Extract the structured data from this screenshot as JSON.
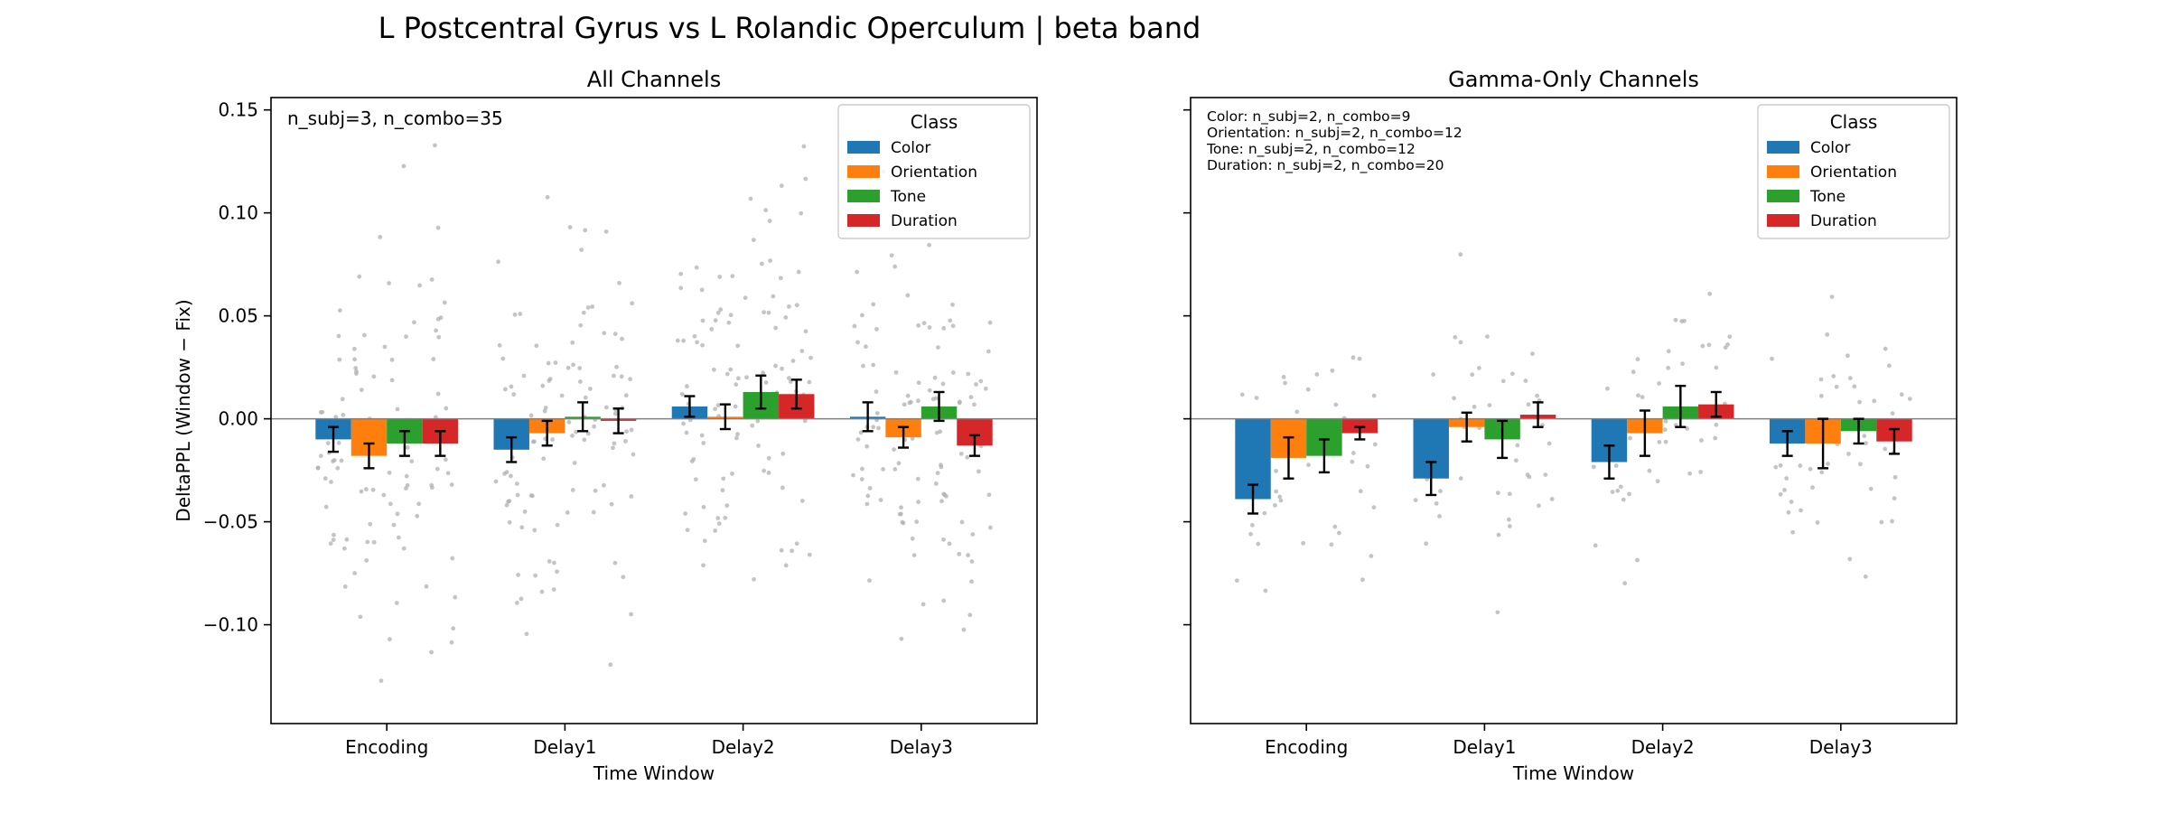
{
  "figure": {
    "title": "L Postcentral Gyrus vs L Rolandic Operculum  |  beta band"
  },
  "colors": {
    "Color": "#1f77b4",
    "Orientation": "#ff7f0e",
    "Tone": "#2ca02c",
    "Duration": "#d62728",
    "scatter": "#b0b0b0",
    "zero_line": "#808080"
  },
  "chart_data": [
    {
      "type": "bar",
      "title": "All Channels",
      "xlabel": "Time Window",
      "ylabel": "DeltaPPL (Window − Fix)",
      "categories": [
        "Encoding",
        "Delay1",
        "Delay2",
        "Delay3"
      ],
      "ylim": [
        -0.148,
        0.156
      ],
      "yticks": [
        0.15,
        0.1,
        0.05,
        0.0,
        -0.05,
        -0.1
      ],
      "ytick_labels": [
        "0.15",
        "0.10",
        "0.05",
        "0.00",
        "−0.05",
        "−0.10"
      ],
      "legend": {
        "title": "Class",
        "placement": "top-right"
      },
      "annotation": [
        "n_subj=3, n_combo=35"
      ],
      "series": [
        {
          "name": "Color",
          "values": [
            -0.01,
            -0.015,
            0.006,
            0.001
          ],
          "errors": [
            0.006,
            0.006,
            0.005,
            0.007
          ]
        },
        {
          "name": "Orientation",
          "values": [
            -0.018,
            -0.007,
            0.001,
            -0.009
          ],
          "errors": [
            0.006,
            0.006,
            0.006,
            0.005
          ]
        },
        {
          "name": "Tone",
          "values": [
            -0.012,
            0.001,
            0.013,
            0.006
          ],
          "errors": [
            0.006,
            0.007,
            0.008,
            0.007
          ]
        },
        {
          "name": "Duration",
          "values": [
            -0.012,
            -0.001,
            0.012,
            -0.013
          ],
          "errors": [
            0.006,
            0.006,
            0.007,
            0.005
          ]
        }
      ]
    },
    {
      "type": "bar",
      "title": "Gamma-Only Channels",
      "xlabel": "Time Window",
      "ylabel": "",
      "categories": [
        "Encoding",
        "Delay1",
        "Delay2",
        "Delay3"
      ],
      "ylim": [
        -0.148,
        0.156
      ],
      "yticks": [
        0.15,
        0.1,
        0.05,
        0.0,
        -0.05,
        -0.1
      ],
      "ytick_labels": [
        "",
        "",
        "",
        "",
        "",
        ""
      ],
      "legend": {
        "title": "Class",
        "placement": "top-right"
      },
      "annotation": [
        "Color: n_subj=2, n_combo=9",
        "Orientation: n_subj=2, n_combo=12",
        "Tone: n_subj=2, n_combo=12",
        "Duration: n_subj=2, n_combo=20"
      ],
      "series": [
        {
          "name": "Color",
          "values": [
            -0.039,
            -0.029,
            -0.021,
            -0.012
          ],
          "errors": [
            0.007,
            0.008,
            0.008,
            0.006
          ]
        },
        {
          "name": "Orientation",
          "values": [
            -0.019,
            -0.004,
            -0.007,
            -0.012
          ],
          "errors": [
            0.01,
            0.007,
            0.011,
            0.012
          ]
        },
        {
          "name": "Tone",
          "values": [
            -0.018,
            -0.01,
            0.006,
            -0.006
          ],
          "errors": [
            0.008,
            0.009,
            0.01,
            0.006
          ]
        },
        {
          "name": "Duration",
          "values": [
            -0.007,
            0.002,
            0.007,
            -0.011
          ],
          "errors": [
            0.003,
            0.006,
            0.006,
            0.006
          ]
        }
      ]
    }
  ]
}
